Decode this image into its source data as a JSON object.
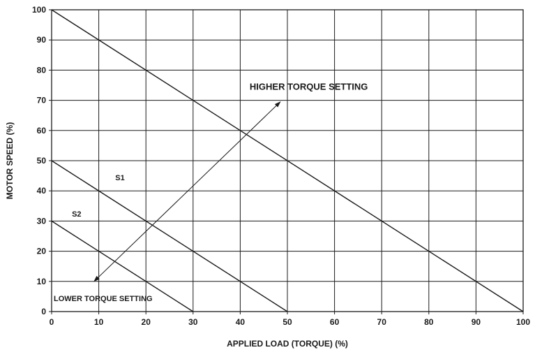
{
  "chart_data": {
    "type": "line",
    "title": "",
    "xlabel": "APPLIED LOAD (TORQUE) (%)",
    "ylabel": "MOTOR SPEED (%)",
    "xlim": [
      0,
      100
    ],
    "ylim": [
      0,
      100
    ],
    "x_ticks": [
      0,
      10,
      20,
      30,
      40,
      50,
      60,
      70,
      80,
      90,
      100
    ],
    "y_ticks": [
      0,
      10,
      20,
      30,
      40,
      50,
      60,
      70,
      80,
      90,
      100
    ],
    "grid": true,
    "legend": "none",
    "series": [
      {
        "x": [
          0,
          100
        ],
        "y": [
          100,
          0
        ]
      },
      {
        "name": "S1",
        "x": [
          0,
          50
        ],
        "y": [
          50,
          0
        ]
      },
      {
        "name": "S2",
        "x": [
          0,
          30
        ],
        "y": [
          30,
          0
        ]
      }
    ],
    "annotations": [
      {
        "text": "HIGHER TORQUE SETTING",
        "x": 42,
        "y": 73.5
      },
      {
        "text": "LOWER TORQUE SETTING",
        "x": 0,
        "y": 3.5
      },
      {
        "text": "S1",
        "x": 13.5,
        "y": 43.5
      },
      {
        "text": "S2",
        "x": 4.3,
        "y": 31.5
      }
    ],
    "arrow": {
      "from": [
        9,
        10
      ],
      "to": [
        48.5,
        69.5
      ],
      "double_headed": true
    }
  }
}
